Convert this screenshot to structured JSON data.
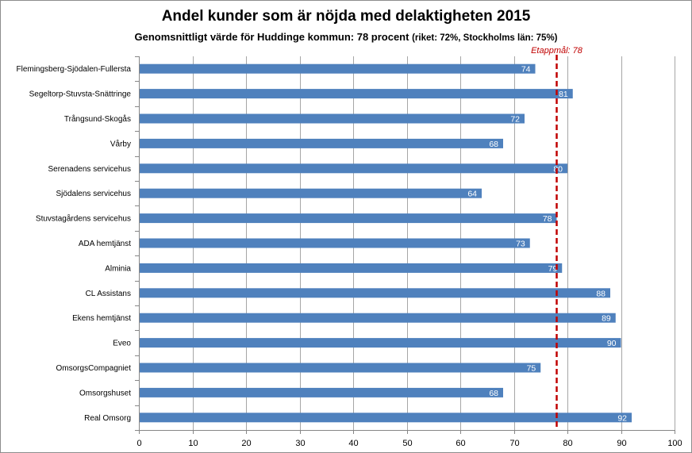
{
  "chart_data": {
    "type": "bar",
    "orientation": "horizontal",
    "title": "Andel kunder som är nöjda med delaktigheten 2015",
    "subtitle_main": "Genomsnittligt värde för Huddinge kommun: 78 procent",
    "subtitle_note": "(riket: 72%, Stockholms län: 75%)",
    "categories": [
      "Flemingsberg-Sjödalen-Fullersta",
      "Segeltorp-Stuvsta-Snättringe",
      "Trångsund-Skogås",
      "Vårby",
      "Serenadens servicehus",
      "Sjödalens servicehus",
      "Stuvstagårdens servicehus",
      "ADA hemtjänst",
      "Alminia",
      "CL Assistans",
      "Ekens hemtjänst",
      "Eveo",
      "OmsorgsCompagniet",
      "Omsorgshuset",
      "Real Omsorg"
    ],
    "values": [
      74,
      81,
      72,
      68,
      80,
      64,
      78,
      73,
      79,
      88,
      89,
      90,
      75,
      68,
      92
    ],
    "xlim": [
      0,
      100
    ],
    "xticks": [
      0,
      10,
      20,
      30,
      40,
      50,
      60,
      70,
      80,
      90,
      100
    ],
    "grid": "vertical",
    "bar_color": "#4f81bd",
    "reference_line": {
      "value": 78,
      "label": "Etappmål: 78",
      "color": "#c00000"
    },
    "xlabel": "",
    "ylabel": ""
  }
}
